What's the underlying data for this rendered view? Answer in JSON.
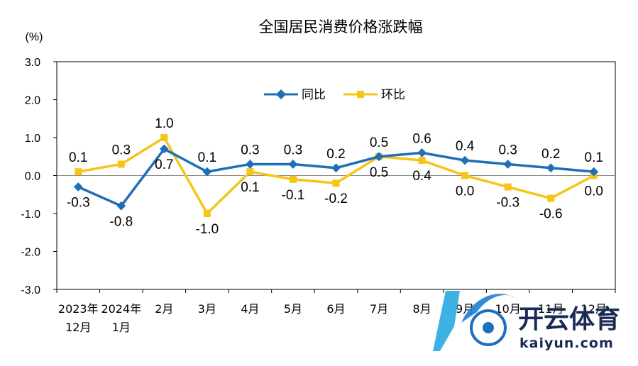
{
  "chart_data": {
    "type": "line",
    "title": "全国居民消费价格涨跌幅",
    "unit_label": "(%)",
    "ylim": [
      -3.0,
      3.0
    ],
    "yticks": [
      "3.0",
      "2.0",
      "1.0",
      "0.0",
      "-1.0",
      "-2.0",
      "-3.0"
    ],
    "categories": [
      [
        "2023年",
        "12月"
      ],
      [
        "2024年",
        "1月"
      ],
      [
        "2月"
      ],
      [
        "3月"
      ],
      [
        "4月"
      ],
      [
        "5月"
      ],
      [
        "6月"
      ],
      [
        "7月"
      ],
      [
        "8月"
      ],
      [
        "9月"
      ],
      [
        "10月"
      ],
      [
        "11月"
      ],
      [
        "12月"
      ]
    ],
    "series": [
      {
        "name": "同比",
        "color": "#1f6fb8",
        "marker": "diamond",
        "values": [
          -0.3,
          -0.8,
          0.7,
          0.1,
          0.3,
          0.3,
          0.2,
          0.5,
          0.6,
          0.4,
          0.3,
          0.2,
          0.1
        ],
        "labels": [
          "-0.3",
          "-0.8",
          "0.7",
          "0.1",
          "0.3",
          "0.3",
          "0.2",
          "0.5",
          "0.6",
          "0.4",
          "0.3",
          "0.2",
          "0.1"
        ]
      },
      {
        "name": "环比",
        "color": "#f5c518",
        "marker": "square",
        "values": [
          0.1,
          0.3,
          1.0,
          -1.0,
          0.1,
          -0.1,
          -0.2,
          0.5,
          0.4,
          0.0,
          -0.3,
          -0.6,
          0.0
        ],
        "labels": [
          "0.1",
          "0.3",
          "1.0",
          "-1.0",
          "0.1",
          "-0.1",
          "-0.2",
          "0.5",
          "0.4",
          "0.0",
          "-0.3",
          "-0.6",
          "0.0"
        ]
      }
    ],
    "legend_position": "top-center",
    "grid": false
  },
  "watermark": {
    "brand_cn": "开云体育",
    "brand_en": "kaiyun.com"
  }
}
